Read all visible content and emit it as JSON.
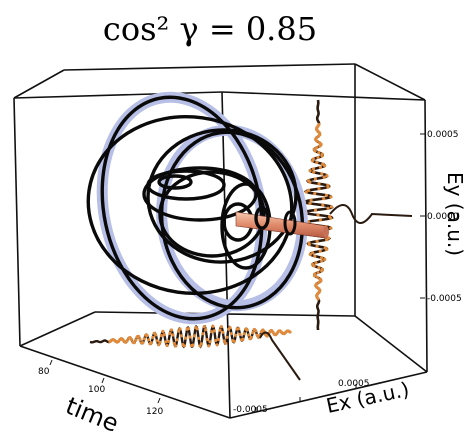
{
  "chart_data": {
    "type": "line",
    "title": "cos² γ = 0.85",
    "axes": {
      "x": {
        "label": "Ex (a.u.)",
        "ticks": [
          "-0.0005",
          "0.0005"
        ]
      },
      "y": {
        "label": "Ey (a.u.)",
        "ticks": [
          "0.0005",
          "0.0000",
          "-0.0005"
        ]
      },
      "z": {
        "label": "time",
        "ticks": [
          "80",
          "100",
          "120"
        ]
      }
    },
    "series": [
      {
        "description_role": "3D electric field trajectory",
        "color": "#000000"
      },
      {
        "description_role": "envelope tube",
        "color": "#b7bfe6"
      },
      {
        "description_role": "projection on Ey–time plane",
        "color": "#e08a3c"
      },
      {
        "description_role": "projection on Ex–time plane",
        "color": "#e08a3c"
      }
    ],
    "colors": {
      "highlight": "#b7bfe6",
      "projection": "#e08a3c",
      "probe": "#e7a07f"
    }
  }
}
